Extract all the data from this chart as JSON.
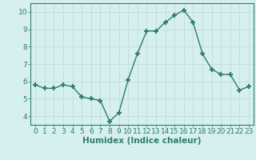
{
  "x": [
    0,
    1,
    2,
    3,
    4,
    5,
    6,
    7,
    8,
    9,
    10,
    11,
    12,
    13,
    14,
    15,
    16,
    17,
    18,
    19,
    20,
    21,
    22,
    23
  ],
  "y": [
    5.8,
    5.6,
    5.6,
    5.8,
    5.7,
    5.1,
    5.0,
    4.9,
    3.7,
    4.2,
    6.1,
    7.6,
    8.9,
    8.9,
    9.4,
    9.8,
    10.1,
    9.4,
    7.6,
    6.7,
    6.4,
    6.4,
    5.5,
    5.7
  ],
  "line_color": "#2e7d6e",
  "marker": "+",
  "marker_size": 4,
  "bg_color": "#d6efef",
  "grid_color": "#c0d8d8",
  "xlabel": "Humidex (Indice chaleur)",
  "ylabel": "",
  "xlim": [
    -0.5,
    23.5
  ],
  "ylim": [
    3.5,
    10.5
  ],
  "yticks": [
    4,
    5,
    6,
    7,
    8,
    9,
    10
  ],
  "xticks": [
    0,
    1,
    2,
    3,
    4,
    5,
    6,
    7,
    8,
    9,
    10,
    11,
    12,
    13,
    14,
    15,
    16,
    17,
    18,
    19,
    20,
    21,
    22,
    23
  ],
  "tick_label_fontsize": 6.5,
  "xlabel_fontsize": 7.5,
  "line_width": 1.0,
  "marker_thickness": 1.5
}
